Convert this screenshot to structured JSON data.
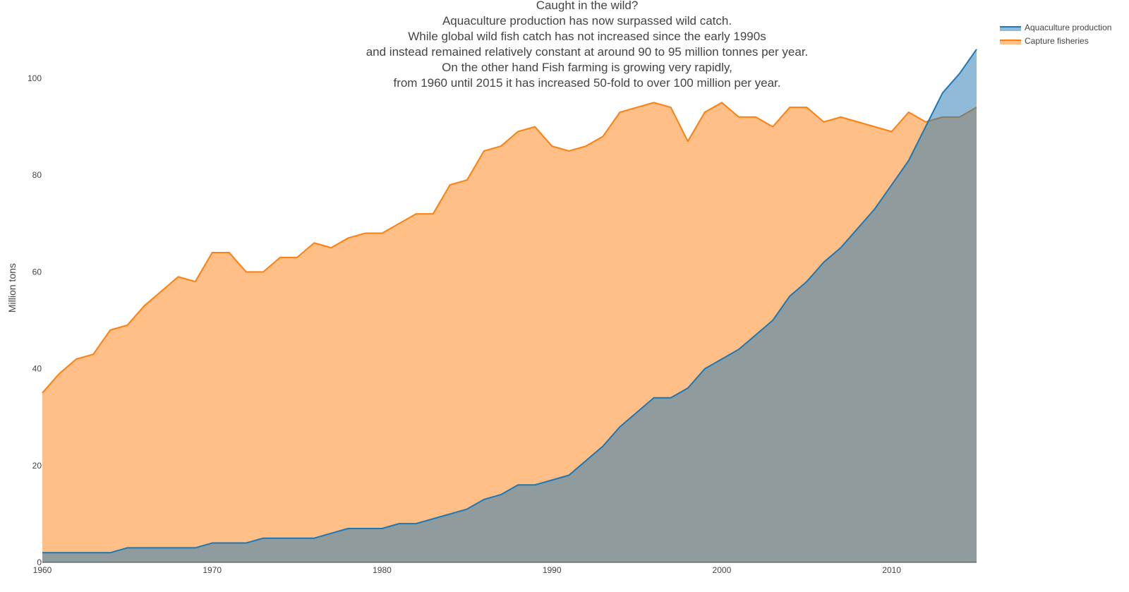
{
  "chart_data": {
    "type": "area",
    "title_lines": [
      "Caught in the wild?",
      "Aquaculture production has now surpassed wild catch.",
      "While global wild fish catch has not increased since the early 1990s",
      "and instead remained relatively constant at around 90 to 95 million tonnes per year.",
      "On the other hand Fish farming is growing very rapidly,",
      "from 1960 until 2015 it has increased 50-fold to over 100 million per year."
    ],
    "xlabel": "",
    "ylabel": "Million tons",
    "xlim": [
      1960,
      2015
    ],
    "ylim": [
      0,
      107
    ],
    "x_ticks": [
      1960,
      1970,
      1980,
      1990,
      2000,
      2010
    ],
    "y_ticks": [
      0,
      20,
      40,
      60,
      80,
      100
    ],
    "grid": false,
    "legend_position": "top-right",
    "x": [
      1960,
      1961,
      1962,
      1963,
      1964,
      1965,
      1966,
      1967,
      1968,
      1969,
      1970,
      1971,
      1972,
      1973,
      1974,
      1975,
      1976,
      1977,
      1978,
      1979,
      1980,
      1981,
      1982,
      1983,
      1984,
      1985,
      1986,
      1987,
      1988,
      1989,
      1990,
      1991,
      1992,
      1993,
      1994,
      1995,
      1996,
      1997,
      1998,
      1999,
      2000,
      2001,
      2002,
      2003,
      2004,
      2005,
      2006,
      2007,
      2008,
      2009,
      2010,
      2011,
      2012,
      2013,
      2014,
      2015
    ],
    "series": [
      {
        "name": "Aquaculture production",
        "color": "#1f77b4",
        "fill": "#1f77b4",
        "values": [
          2,
          2,
          2,
          2,
          2,
          3,
          3,
          3,
          3,
          3,
          4,
          4,
          4,
          5,
          5,
          5,
          5,
          6,
          7,
          7,
          7,
          8,
          8,
          9,
          10,
          11,
          13,
          14,
          16,
          16,
          17,
          18,
          21,
          24,
          28,
          31,
          34,
          34,
          36,
          40,
          42,
          44,
          47,
          50,
          55,
          58,
          62,
          65,
          69,
          73,
          78,
          83,
          90,
          97,
          101,
          106
        ]
      },
      {
        "name": "Capture fisheries",
        "color": "#ff7f0e",
        "fill": "#ff7f0e",
        "values": [
          35,
          39,
          42,
          43,
          48,
          49,
          53,
          56,
          59,
          58,
          64,
          64,
          60,
          60,
          63,
          63,
          66,
          65,
          67,
          68,
          68,
          70,
          72,
          72,
          78,
          79,
          85,
          86,
          89,
          90,
          86,
          85,
          86,
          88,
          93,
          94,
          95,
          94,
          87,
          93,
          95,
          92,
          92,
          90,
          94,
          94,
          91,
          92,
          91,
          90,
          89,
          93,
          91,
          92,
          92,
          94
        ]
      }
    ]
  }
}
